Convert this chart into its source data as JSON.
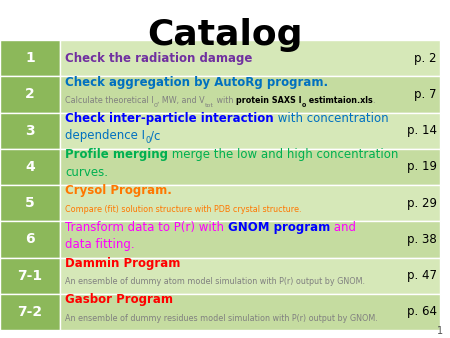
{
  "title": "Catalog",
  "title_fontsize": 26,
  "title_font": "Comic Sans MS",
  "background_color": "#ffffff",
  "header_bg": "#8cb85a",
  "row_bg_odd": "#d6e8b8",
  "row_bg_even": "#c5dca0",
  "page_number": "1",
  "fig_width": 4.5,
  "fig_height": 3.38,
  "dpi": 100,
  "rows": [
    {
      "num": "1",
      "page": "p. 2",
      "lines": [
        [
          {
            "text": "Check the radiation damage",
            "color": "#7030a0",
            "bold": true,
            "size": 8.5
          }
        ]
      ]
    },
    {
      "num": "2",
      "page": "p. 7",
      "lines": [
        [
          {
            "text": "Check aggregation by AutoRg program.",
            "color": "#0070c0",
            "bold": true,
            "size": 8.5
          }
        ],
        [
          {
            "text": "Calculate theoretical I",
            "color": "#808080",
            "bold": false,
            "size": 5.8
          },
          {
            "text": "0",
            "color": "#808080",
            "bold": false,
            "size": 4.5,
            "sub": true
          },
          {
            "text": ", MW, and V",
            "color": "#808080",
            "bold": false,
            "size": 5.8
          },
          {
            "text": "tot",
            "color": "#808080",
            "bold": false,
            "size": 4.5,
            "sub": true
          },
          {
            "text": " with ",
            "color": "#808080",
            "bold": false,
            "size": 5.8
          },
          {
            "text": "protein SAXS I",
            "color": "#000000",
            "bold": true,
            "size": 5.8
          },
          {
            "text": "0",
            "color": "#000000",
            "bold": true,
            "size": 4.5,
            "sub": true
          },
          {
            "text": " estimtaion.xls",
            "color": "#000000",
            "bold": true,
            "size": 5.8
          },
          {
            "text": ".",
            "color": "#808080",
            "bold": false,
            "size": 5.8
          }
        ]
      ]
    },
    {
      "num": "3",
      "page": "p. 14",
      "lines": [
        [
          {
            "text": "Check inter-particle interaction",
            "color": "#0000ff",
            "bold": true,
            "size": 8.5
          },
          {
            "text": " with concentration",
            "color": "#0070c0",
            "bold": false,
            "size": 8.5
          }
        ],
        [
          {
            "text": "dependence I",
            "color": "#0070c0",
            "bold": false,
            "size": 8.5
          },
          {
            "text": "0",
            "color": "#0070c0",
            "bold": false,
            "size": 6.0,
            "sub": true
          },
          {
            "text": "/c",
            "color": "#0070c0",
            "bold": false,
            "size": 8.5
          }
        ]
      ]
    },
    {
      "num": "4",
      "page": "p. 19",
      "lines": [
        [
          {
            "text": "Profile merging",
            "color": "#00b050",
            "bold": true,
            "size": 8.5
          },
          {
            "text": " merge the low and high concentration",
            "color": "#00b050",
            "bold": false,
            "size": 8.5
          }
        ],
        [
          {
            "text": "curves.",
            "color": "#00b050",
            "bold": false,
            "size": 8.5
          }
        ]
      ]
    },
    {
      "num": "5",
      "page": "p. 29",
      "lines": [
        [
          {
            "text": "Crysol Program.",
            "color": "#ff7700",
            "bold": true,
            "size": 8.5
          }
        ],
        [
          {
            "text": "Compare (fit) solution structure with PDB crystal structure.",
            "color": "#ff7700",
            "bold": false,
            "size": 5.8
          }
        ]
      ]
    },
    {
      "num": "6",
      "page": "p. 38",
      "lines": [
        [
          {
            "text": "Transform data to P(r) with ",
            "color": "#ff00ff",
            "bold": false,
            "size": 8.5
          },
          {
            "text": "GNOM program",
            "color": "#0000ff",
            "bold": true,
            "size": 8.5
          },
          {
            "text": " and",
            "color": "#ff00ff",
            "bold": false,
            "size": 8.5
          }
        ],
        [
          {
            "text": "data fitting.",
            "color": "#ff00ff",
            "bold": false,
            "size": 8.5
          }
        ]
      ]
    },
    {
      "num": "7-1",
      "page": "p. 47",
      "lines": [
        [
          {
            "text": "Dammin Program",
            "color": "#ff0000",
            "bold": true,
            "size": 8.5
          }
        ],
        [
          {
            "text": "An ensemble of dummy atom model simulation with P(r) output by GNOM.",
            "color": "#808080",
            "bold": false,
            "size": 5.8
          }
        ]
      ]
    },
    {
      "num": "7-2",
      "page": "p. 64",
      "lines": [
        [
          {
            "text": "Gasbor Program",
            "color": "#ff0000",
            "bold": true,
            "size": 8.5
          }
        ],
        [
          {
            "text": "An ensemble of dummy residues model simulation with P(r) output by GNOM.",
            "color": "#808080",
            "bold": false,
            "size": 5.8
          }
        ]
      ]
    }
  ]
}
